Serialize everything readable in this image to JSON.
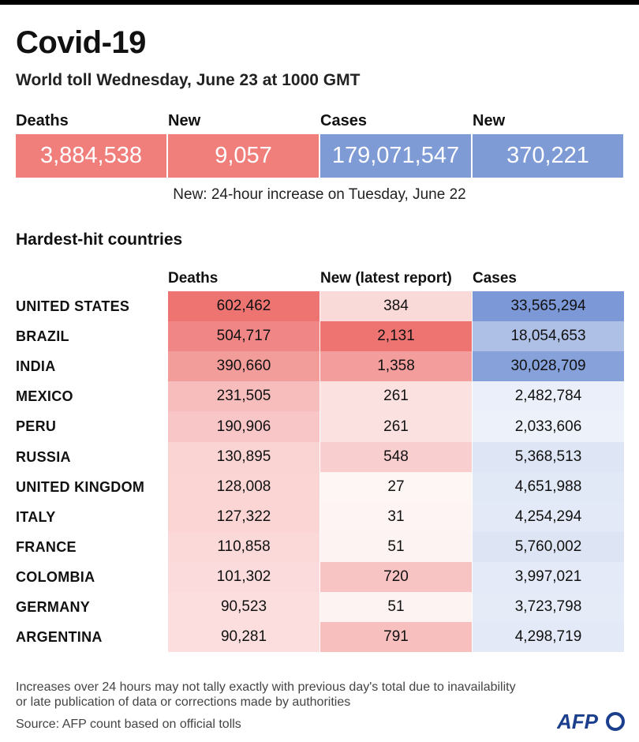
{
  "header": {
    "title": "Covid-19",
    "subtitle": "World toll Wednesday, June 23 at 1000 GMT"
  },
  "totals": {
    "deaths_label": "Deaths",
    "deaths_value": "3,884,538",
    "new_deaths_label": "New",
    "new_deaths_value": "9,057",
    "cases_label": "Cases",
    "cases_value": "179,071,547",
    "new_cases_label": "New",
    "new_cases_value": "370,221",
    "note": "New: 24-hour increase on Tuesday, June 22",
    "colors": {
      "deaths": "#f07f7c",
      "cases": "#7e9bd6"
    }
  },
  "table": {
    "section_title": "Hardest-hit countries",
    "columns": [
      "Deaths",
      "New (latest report)",
      "Cases"
    ]
  },
  "chart_data": {
    "type": "table",
    "title": "Hardest-hit countries",
    "columns": [
      "Deaths",
      "New (latest report)",
      "Cases"
    ],
    "rows": [
      {
        "country": "UNITED STATES",
        "deaths": 602462,
        "new": 384,
        "cases": 33565294,
        "deaths_text": "602,462",
        "new_text": "384",
        "cases_text": "33,565,294"
      },
      {
        "country": "BRAZIL",
        "deaths": 504717,
        "new": 2131,
        "cases": 18054653,
        "deaths_text": "504,717",
        "new_text": "2,131",
        "cases_text": "18,054,653"
      },
      {
        "country": "INDIA",
        "deaths": 390660,
        "new": 1358,
        "cases": 30028709,
        "deaths_text": "390,660",
        "new_text": "1,358",
        "cases_text": "30,028,709"
      },
      {
        "country": "MEXICO",
        "deaths": 231505,
        "new": 261,
        "cases": 2482784,
        "deaths_text": "231,505",
        "new_text": "261",
        "cases_text": "2,482,784"
      },
      {
        "country": "PERU",
        "deaths": 190906,
        "new": 261,
        "cases": 2033606,
        "deaths_text": "190,906",
        "new_text": "261",
        "cases_text": "2,033,606"
      },
      {
        "country": "RUSSIA",
        "deaths": 130895,
        "new": 548,
        "cases": 5368513,
        "deaths_text": "130,895",
        "new_text": "548",
        "cases_text": "5,368,513"
      },
      {
        "country": "UNITED KINGDOM",
        "deaths": 128008,
        "new": 27,
        "cases": 4651988,
        "deaths_text": "128,008",
        "new_text": "27",
        "cases_text": "4,651,988"
      },
      {
        "country": "ITALY",
        "deaths": 127322,
        "new": 31,
        "cases": 4254294,
        "deaths_text": "127,322",
        "new_text": "31",
        "cases_text": "4,254,294"
      },
      {
        "country": "FRANCE",
        "deaths": 110858,
        "new": 51,
        "cases": 5760002,
        "deaths_text": "110,858",
        "new_text": "51",
        "cases_text": "5,760,002"
      },
      {
        "country": "COLOMBIA",
        "deaths": 101302,
        "new": 720,
        "cases": 3997021,
        "deaths_text": "101,302",
        "new_text": "720",
        "cases_text": "3,997,021"
      },
      {
        "country": "GERMANY",
        "deaths": 90523,
        "new": 51,
        "cases": 3723798,
        "deaths_text": "90,523",
        "new_text": "51",
        "cases_text": "3,723,798"
      },
      {
        "country": "ARGENTINA",
        "deaths": 90281,
        "new": 791,
        "cases": 4298719,
        "deaths_text": "90,281",
        "new_text": "791",
        "cases_text": "4,298,719"
      }
    ],
    "heat_colors": {
      "red": "#ee7472",
      "blue": "#7c98d6",
      "base": "#ffffff"
    }
  },
  "footer": {
    "note_line1": "Increases over 24 hours may not tally exactly with previous day's total due to inavailability",
    "note_line2": "or late publication of data or corrections made by authorities",
    "source": "Source: AFP count based on official tolls",
    "logo_text": "AFP"
  }
}
